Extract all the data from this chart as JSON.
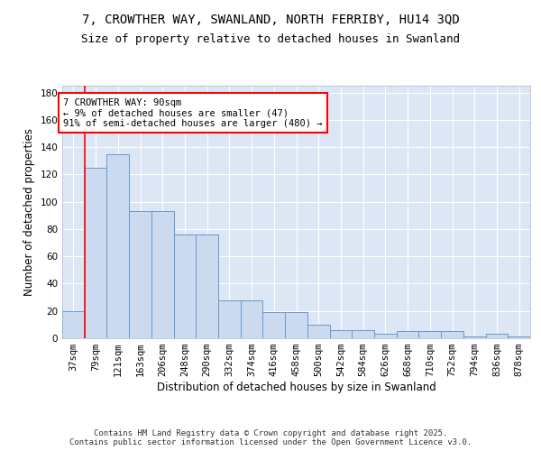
{
  "title_line1": "7, CROWTHER WAY, SWANLAND, NORTH FERRIBY, HU14 3QD",
  "title_line2": "Size of property relative to detached houses in Swanland",
  "xlabel": "Distribution of detached houses by size in Swanland",
  "ylabel": "Number of detached properties",
  "bin_labels": [
    "37sqm",
    "79sqm",
    "121sqm",
    "163sqm",
    "206sqm",
    "248sqm",
    "290sqm",
    "332sqm",
    "374sqm",
    "416sqm",
    "458sqm",
    "500sqm",
    "542sqm",
    "584sqm",
    "626sqm",
    "668sqm",
    "710sqm",
    "752sqm",
    "794sqm",
    "836sqm",
    "878sqm"
  ],
  "bar_heights": [
    20,
    125,
    135,
    93,
    93,
    76,
    76,
    28,
    28,
    19,
    19,
    10,
    6,
    6,
    3,
    5,
    5,
    5,
    1,
    3,
    1
  ],
  "bar_color": "#ccdaf0",
  "bar_edge_color": "#6699cc",
  "annotation_text": "7 CROWTHER WAY: 90sqm\n← 9% of detached houses are smaller (47)\n91% of semi-detached houses are larger (480) →",
  "annotation_box_color": "white",
  "annotation_box_edge_color": "red",
  "vline_color": "red",
  "vline_position": 0.5,
  "ylim": [
    0,
    185
  ],
  "yticks": [
    0,
    20,
    40,
    60,
    80,
    100,
    120,
    140,
    160,
    180
  ],
  "background_color": "#dde6f5",
  "grid_color": "#ffffff",
  "footnote": "Contains HM Land Registry data © Crown copyright and database right 2025.\nContains public sector information licensed under the Open Government Licence v3.0.",
  "title_fontsize": 10,
  "subtitle_fontsize": 9,
  "axis_label_fontsize": 8.5,
  "tick_fontsize": 7.5,
  "annotation_fontsize": 7.5,
  "footnote_fontsize": 6.5
}
